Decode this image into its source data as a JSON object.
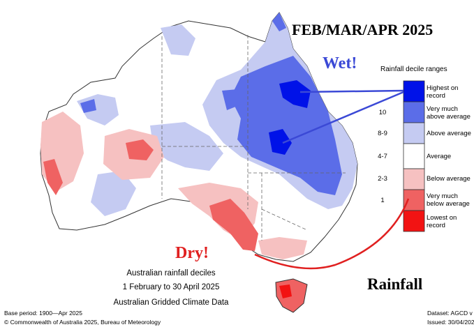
{
  "title": "FEB/MAR/APR 2025",
  "annotations": {
    "wet": "Wet!",
    "dry": "Dry!",
    "rainfall": "Rainfall"
  },
  "caption": {
    "line1": "Australian rainfall deciles",
    "line2": "1 February to 30 April 2025",
    "line3": "Australian Gridded Climate Data"
  },
  "legend": {
    "title": "Rainfall decile ranges",
    "categories": [
      {
        "label": "Highest on record",
        "color": "#0012e8"
      },
      {
        "label": "Very much above average",
        "color": "#5b6de8"
      },
      {
        "label": "Above average",
        "color": "#c5cbf2"
      },
      {
        "label": "Average",
        "color": "#ffffff"
      },
      {
        "label": "Below average",
        "color": "#f6c1c1"
      },
      {
        "label": "Very much below average",
        "color": "#ef6262"
      },
      {
        "label": "Lowest on record",
        "color": "#f21313"
      }
    ],
    "ranges": [
      "10",
      "8-9",
      "4-7",
      "2-3",
      "1"
    ]
  },
  "footer": {
    "base_period": "Base period: 1900—Apr 2025",
    "copyright": "© Commonwealth of Australia 2025, Bureau of Meteorology",
    "dataset": "Dataset: AGCD v",
    "issued": "Issued: 30/04/202"
  },
  "arrow_colors": {
    "wet": "#3b49d6",
    "dry": "#e02020"
  }
}
